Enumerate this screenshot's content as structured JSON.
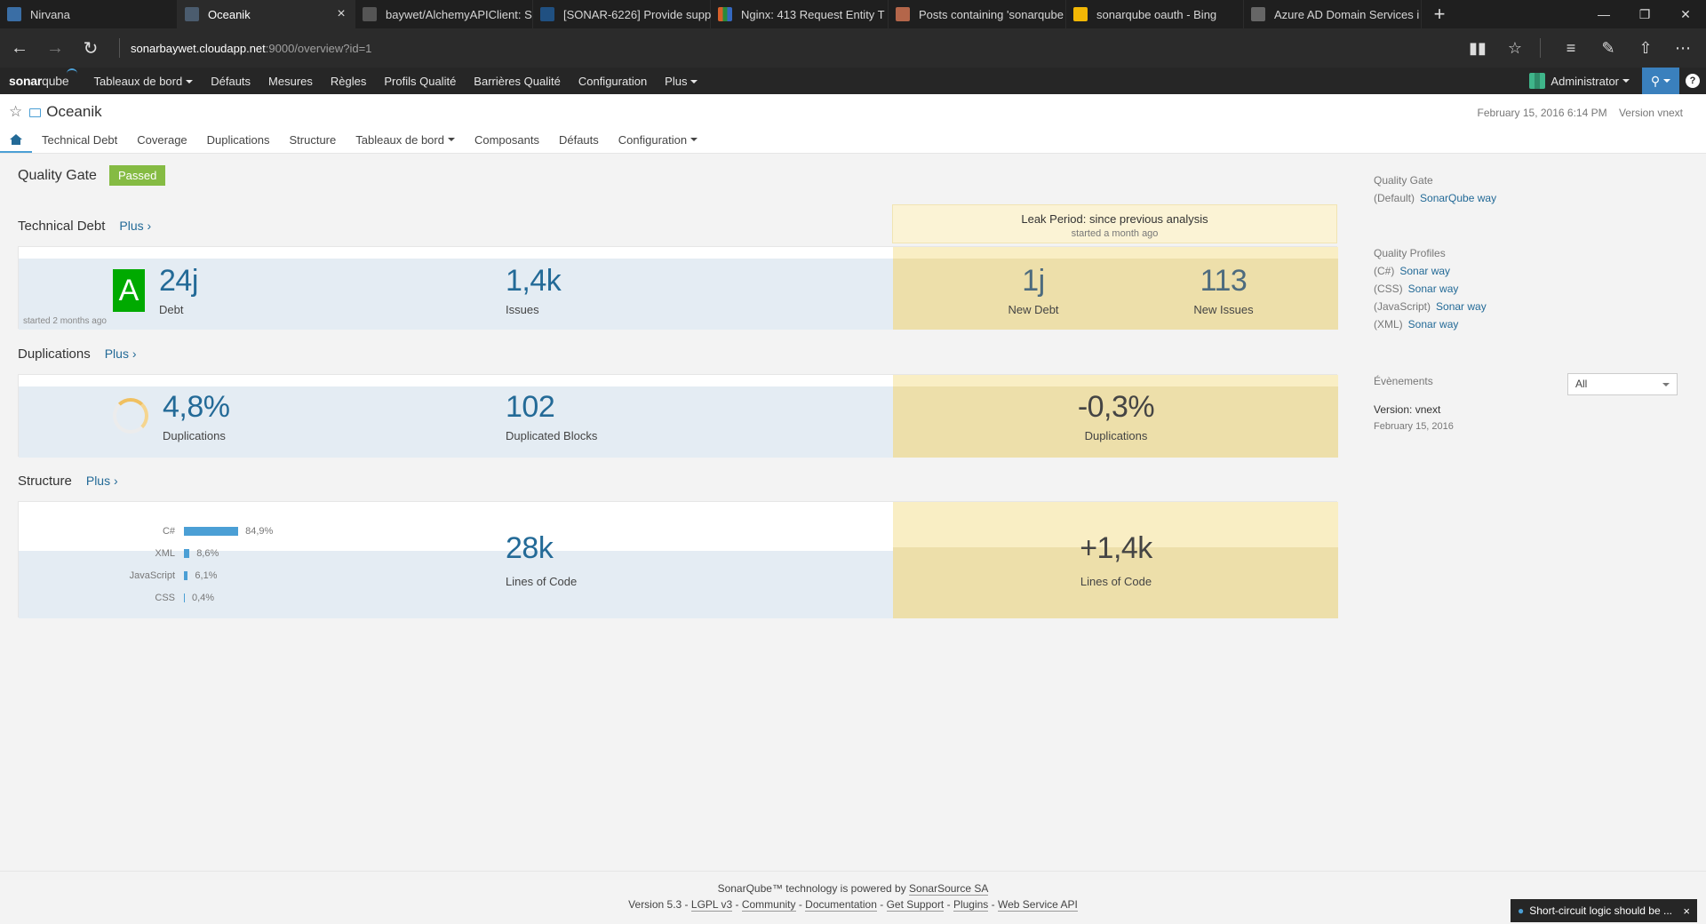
{
  "browser": {
    "tabs": [
      {
        "title": "Nirvana",
        "fav_color": "#3a6ea5"
      },
      {
        "title": "Oceanik",
        "fav_color": "#4b5c6e",
        "active": true
      },
      {
        "title": "baywet/AlchemyAPIClient: S",
        "fav_color": "#555555"
      },
      {
        "title": "[SONAR-6226] Provide supp",
        "fav_color": "#205081"
      },
      {
        "title": "Nginx: 413 Request Entity T",
        "fav_color": "#d6602a"
      },
      {
        "title": "Posts containing 'sonarqube",
        "fav_color": "#b4664a"
      },
      {
        "title": "sonarqube oauth - Bing",
        "fav_color": "#f2b705"
      },
      {
        "title": "Azure AD Domain Services i",
        "fav_color": "#666666"
      }
    ],
    "url_host": "sonarbaywet.cloudapp.net",
    "url_path": ":9000/overview?id=1"
  },
  "nav": {
    "logo_sonar": "sonar",
    "logo_qube": "qube",
    "items": [
      {
        "label": "Tableaux de bord",
        "dropdown": true
      },
      {
        "label": "Défauts"
      },
      {
        "label": "Mesures"
      },
      {
        "label": "Règles"
      },
      {
        "label": "Profils Qualité"
      },
      {
        "label": "Barrières Qualité"
      },
      {
        "label": "Configuration"
      },
      {
        "label": "Plus",
        "dropdown": true
      }
    ],
    "user": "Administrator"
  },
  "component": {
    "name": "Oceanik",
    "date": "February 15, 2016 6:14 PM",
    "version": "Version vnext",
    "tabs": [
      "Technical Debt",
      "Coverage",
      "Duplications",
      "Structure",
      "Tableaux de bord",
      "Composants",
      "Défauts",
      "Configuration"
    ]
  },
  "quality_gate": {
    "label": "Quality Gate",
    "status": "Passed",
    "status_color": "#85bb43"
  },
  "leak": {
    "title": "Leak Period: since previous analysis",
    "sub": "started a month ago"
  },
  "sections": {
    "debt": {
      "title": "Technical Debt",
      "more": "Plus ›",
      "rating": "A",
      "debt": "24j",
      "debt_label": "Debt",
      "started": "started 2 months ago",
      "issues": "1,4k",
      "issues_label": "Issues",
      "new_debt": "1j",
      "new_debt_label": "New Debt",
      "new_issues": "113",
      "new_issues_label": "New Issues"
    },
    "dup": {
      "title": "Duplications",
      "more": "Plus ›",
      "density": "4,8%",
      "density_label": "Duplications",
      "blocks": "102",
      "blocks_label": "Duplicated Blocks",
      "new_density": "-0,3%",
      "new_density_label": "Duplications"
    },
    "struct": {
      "title": "Structure",
      "more": "Plus ›",
      "languages": [
        {
          "name": "C#",
          "pct": "84,9%",
          "value": 84.9
        },
        {
          "name": "XML",
          "pct": "8,6%",
          "value": 8.6
        },
        {
          "name": "JavaScript",
          "pct": "6,1%",
          "value": 6.1
        },
        {
          "name": "CSS",
          "pct": "0,4%",
          "value": 0.4
        }
      ],
      "loc": "28k",
      "loc_label": "Lines of Code",
      "new_loc": "+1,4k",
      "new_loc_label": "Lines of Code"
    }
  },
  "sidebar": {
    "qg_heading": "Quality Gate",
    "qg_prefix": "(Default)",
    "qg_link": "SonarQube way",
    "profiles_heading": "Quality Profiles",
    "profiles": [
      {
        "lang": "(C#)",
        "name": "Sonar way"
      },
      {
        "lang": "(CSS)",
        "name": "Sonar way"
      },
      {
        "lang": "(JavaScript)",
        "name": "Sonar way"
      },
      {
        "lang": "(XML)",
        "name": "Sonar way"
      }
    ],
    "events_heading": "Évènements",
    "events_filter": "All",
    "event_name": "Version: vnext",
    "event_date": "February 15, 2016"
  },
  "footer": {
    "line1_prefix": "SonarQube™ technology is powered by",
    "line1_link": "SonarSource SA",
    "version": "Version 5.3",
    "links": [
      "LGPL v3",
      "Community",
      "Documentation",
      "Get Support",
      "Plugins",
      "Web Service API"
    ]
  },
  "toast": "Short-circuit logic should be ..."
}
